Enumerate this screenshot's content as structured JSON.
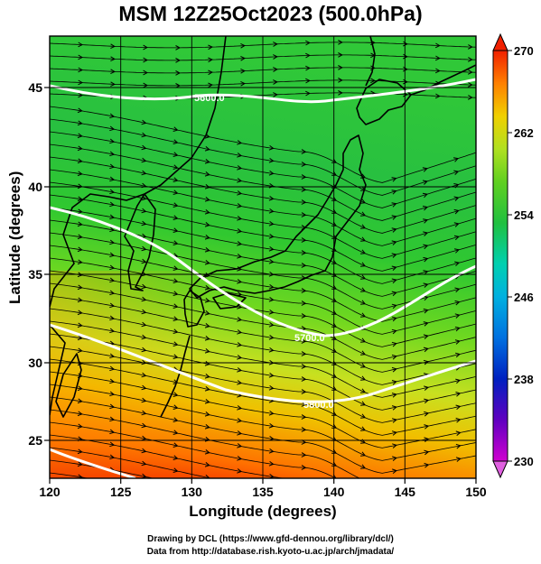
{
  "title": "MSM 12Z25Oct2023 (500.0hPa)",
  "axes": {
    "xlabel": "Longitude (degrees)",
    "ylabel": "Latitude  (degrees)",
    "x_ticks": [
      "120",
      "125",
      "130",
      "135",
      "140",
      "145",
      "150"
    ],
    "y_ticks": [
      "25",
      "30",
      "35",
      "40",
      "45"
    ],
    "x_range": [
      120,
      150
    ],
    "y_range": [
      22.4,
      47.6
    ]
  },
  "colorbar": {
    "tick_labels": [
      "270",
      "262",
      "254",
      "246",
      "238",
      "230"
    ],
    "range": [
      230,
      270
    ],
    "colors": [
      "#d000d0",
      "#6000c0",
      "#0020c0",
      "#0070e0",
      "#00b0e0",
      "#00d0b0",
      "#20c040",
      "#60d020",
      "#b0e020",
      "#f0d000",
      "#ff8000",
      "#f02000"
    ]
  },
  "contours": [
    {
      "label": "5600.0"
    },
    {
      "label": "5700.0"
    },
    {
      "label": "5800.0"
    }
  ],
  "credits": {
    "line1": "Drawing by DCL (https://www.gfd-dennou.org/library/dcl/)",
    "line2": "Data from http://database.rish.kyoto-u.ac.jp/arch/jmadata/"
  },
  "chart_data": {
    "type": "heatmap",
    "title": "MSM 12Z25Oct2023 (500.0hPa)",
    "xlabel": "Longitude (degrees)",
    "ylabel": "Latitude  (degrees)",
    "xlim": [
      120,
      150
    ],
    "ylim": [
      22.4,
      47.6
    ],
    "colorbar_range": [
      230,
      270
    ],
    "contour_levels": [
      5600,
      5700,
      5800
    ],
    "grid": true
  }
}
